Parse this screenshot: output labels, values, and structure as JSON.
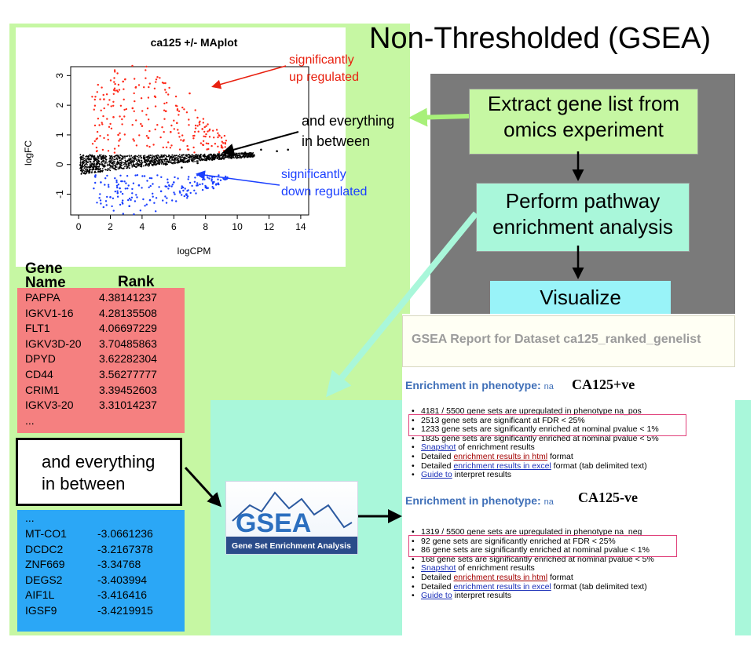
{
  "title": "Non-Thresholded (GSEA)",
  "plot": {
    "title": "ca125 +/- MAplot",
    "xlabel": "logCPM",
    "ylabel": "logFC",
    "xticks": [
      "0",
      "2",
      "4",
      "6",
      "8",
      "10",
      "12",
      "14"
    ],
    "yticks": [
      "3",
      "2",
      "1",
      "0",
      "-1"
    ],
    "ann_up": [
      "significantly",
      "up regulated"
    ],
    "ann_between": [
      "and everything",
      "in between"
    ],
    "ann_down": [
      "significantly",
      "down regulated"
    ],
    "colors": {
      "up": "#ff2a1a",
      "mid": "#000000",
      "down": "#1a3fff"
    }
  },
  "chart_data": {
    "type": "scatter",
    "title": "ca125 +/- MAplot",
    "xlabel": "logCPM",
    "ylabel": "logFC",
    "xlim": [
      -0.5,
      14.5
    ],
    "ylim": [
      -1.7,
      3.3
    ],
    "series": [
      {
        "name": "significantly up regulated",
        "color": "#ff2a1a",
        "x": [
          1.6,
          2.2,
          2.8,
          3.4,
          4.0,
          4.8,
          5.5,
          6.2,
          7.0,
          7.8,
          2.5,
          3.6,
          4.4,
          5.8,
          6.6
        ],
        "y": [
          2.2,
          1.6,
          2.8,
          1.9,
          1.3,
          2.3,
          1.8,
          1.4,
          2.4,
          1.2,
          1.0,
          2.6,
          0.9,
          1.1,
          0.8
        ]
      },
      {
        "name": "and everything in between",
        "color": "#000000",
        "x": [
          0.5,
          1.5,
          2.5,
          3.5,
          4.5,
          5.5,
          6.5,
          7.5,
          8.5,
          9.5,
          10.5,
          11.5,
          12.5,
          13.2
        ],
        "y": [
          0.1,
          0.0,
          0.05,
          -0.05,
          0.1,
          0.0,
          -0.1,
          0.05,
          0.2,
          0.3,
          0.4,
          0.5,
          0.45,
          0.5
        ]
      },
      {
        "name": "significantly down regulated",
        "color": "#1a3fff",
        "x": [
          1.4,
          2.0,
          2.6,
          3.2,
          3.8,
          4.5,
          5.2,
          6.0,
          6.8,
          7.5,
          8.5
        ],
        "y": [
          -0.6,
          -1.1,
          -0.8,
          -1.4,
          -0.7,
          -1.2,
          -0.9,
          -0.6,
          -1.0,
          -0.7,
          -0.8
        ]
      }
    ]
  },
  "flow": {
    "box1": [
      "Extract gene list from",
      "omics experiment"
    ],
    "box2": [
      "Perform pathway",
      "enrichment analysis"
    ],
    "box3": "Visualize"
  },
  "genes": {
    "header_gene": [
      "Gene",
      "Name"
    ],
    "header_rank": "Rank",
    "up": [
      {
        "name": "PAPPA",
        "rank": "4.38141237"
      },
      {
        "name": "IGKV1-16",
        "rank": "4.28135508"
      },
      {
        "name": "FLT1",
        "rank": "4.06697229"
      },
      {
        "name": "IGKV3D-20",
        "rank": "3.70485863"
      },
      {
        "name": "DPYD",
        "rank": "3.62282304"
      },
      {
        "name": "CD44",
        "rank": "3.56277777"
      },
      {
        "name": "CRIM1",
        "rank": "3.39452603"
      },
      {
        "name": "IGKV3-20",
        "rank": "3.31014237"
      }
    ],
    "ellipsis": "...",
    "between": [
      "and everything",
      "in between"
    ],
    "down": [
      {
        "name": "MT-CO1",
        "rank": "-3.0661236"
      },
      {
        "name": "DCDC2",
        "rank": "-3.2167378"
      },
      {
        "name": "ZNF669",
        "rank": "-3.34768"
      },
      {
        "name": "DEGS2",
        "rank": "-3.403994"
      },
      {
        "name": "AIF1L",
        "rank": "-3.416416"
      },
      {
        "name": "IGSF9",
        "rank": "-3.4219915"
      }
    ]
  },
  "gsea_logo": {
    "word": "GSEA",
    "subtitle": "Gene Set Enrichment Analysis"
  },
  "report": {
    "header": "GSEA Report for Dataset ca125_ranked_genelist",
    "section_label": "Enrichment in phenotype:",
    "na": "na",
    "pos_label": "CA125+ve",
    "neg_label": "CA125-ve",
    "pos_lines": [
      "4181 / 5500 gene sets are upregulated in phenotype na_pos",
      "2513 gene sets are significant at FDR < 25%",
      "1233 gene sets are significantly enriched at nominal pvalue < 1%",
      "1835 gene sets are significantly enriched at nominal pvalue < 5%"
    ],
    "neg_lines": [
      "1319 / 5500 gene sets are upregulated in phenotype na_neg",
      "92 gene sets are significantly enriched at FDR < 25%",
      "86 gene sets are significantly enriched at nominal pvalue < 1%",
      "168 gene sets are significantly enriched at nominal pvalue < 5%"
    ],
    "snapshot_link": "Snapshot",
    "snapshot_rest": " of enrichment results",
    "html_pre": "Detailed ",
    "html_link": "enrichment results in html",
    "html_rest": " format",
    "excel_pre": "Detailed ",
    "excel_link": "enrichment results in excel",
    "excel_rest": " format (tab delimited text)",
    "guide_link": "Guide to",
    "guide_rest": " interpret results"
  }
}
